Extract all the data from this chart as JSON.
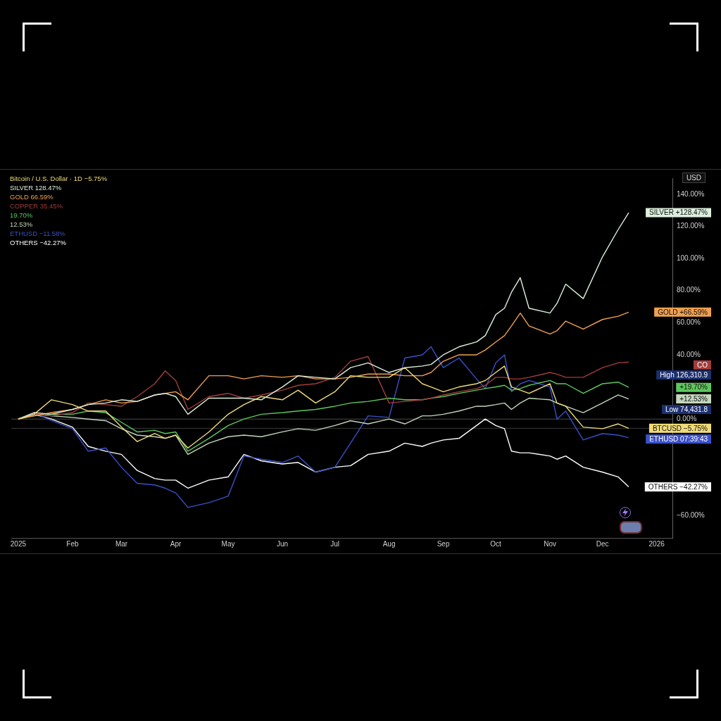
{
  "chart_data": {
    "type": "line",
    "legend": "top left",
    "x": [
      "2025-01-01",
      "2025-01-10",
      "2025-01-20",
      "2025-02-01",
      "2025-02-10",
      "2025-02-20",
      "2025-03-01",
      "2025-03-10",
      "2025-03-20",
      "2025-03-26",
      "2025-04-01",
      "2025-04-08",
      "2025-04-20",
      "2025-05-01",
      "2025-05-10",
      "2025-05-20",
      "2025-06-01",
      "2025-06-10",
      "2025-06-20",
      "2025-07-01",
      "2025-07-10",
      "2025-07-20",
      "2025-08-01",
      "2025-08-10",
      "2025-08-20",
      "2025-08-25",
      "2025-09-01",
      "2025-09-10",
      "2025-09-20",
      "2025-09-25",
      "2025-10-01",
      "2025-10-06",
      "2025-10-10",
      "2025-10-15",
      "2025-10-20",
      "2025-11-01",
      "2025-11-05",
      "2025-11-10",
      "2025-11-20",
      "2025-12-01",
      "2025-12-10",
      "2025-12-16"
    ],
    "xlim": [
      "2024-12-28",
      "2026-01-10"
    ],
    "xticks": [
      {
        "value": "2025-01-01",
        "label": "2025"
      },
      {
        "value": "2025-02-01",
        "label": "Feb"
      },
      {
        "value": "2025-03-01",
        "label": "Mar"
      },
      {
        "value": "2025-04-01",
        "label": "Apr"
      },
      {
        "value": "2025-05-01",
        "label": "May"
      },
      {
        "value": "2025-06-01",
        "label": "Jun"
      },
      {
        "value": "2025-07-01",
        "label": "Jul"
      },
      {
        "value": "2025-08-01",
        "label": "Aug"
      },
      {
        "value": "2025-09-01",
        "label": "Sep"
      },
      {
        "value": "2025-10-01",
        "label": "Oct"
      },
      {
        "value": "2025-11-01",
        "label": "Nov"
      },
      {
        "value": "2025-12-01",
        "label": "Dec"
      },
      {
        "value": "2026-01-01",
        "label": "2026"
      }
    ],
    "ylim": [
      -74,
      150
    ],
    "yticks": [
      {
        "value": 140,
        "label": "140.00%"
      },
      {
        "value": 120,
        "label": "120.00%"
      },
      {
        "value": 100,
        "label": "100.00%"
      },
      {
        "value": 80,
        "label": "80.00%"
      },
      {
        "value": 60,
        "label": "60.00%"
      },
      {
        "value": 40,
        "label": "40.00%"
      },
      {
        "value": 0,
        "label": "0.00%"
      },
      {
        "value": -60,
        "label": "−60.00%"
      }
    ],
    "ref_lines": [
      {
        "axis": "y",
        "value": 0,
        "color": "#4a4a4a"
      },
      {
        "axis": "y",
        "value": -5.75,
        "color": "#3a3a3a"
      }
    ],
    "series": [
      {
        "name": "Bitcoin / U.S. Dollar · 1D −5.75%",
        "color": "#f0dc78",
        "values": [
          0,
          3,
          12,
          9,
          5,
          5,
          -5,
          -14,
          -9,
          -12,
          -10,
          -18,
          -8,
          3,
          9,
          14,
          12,
          18,
          10,
          17,
          27,
          26,
          26,
          32,
          22,
          20,
          17,
          20,
          22,
          24,
          29,
          33,
          20,
          18,
          16,
          22,
          10,
          8,
          -5,
          -6,
          -3,
          -5.75
        ]
      },
      {
        "name": "SILVER 128.47%",
        "color": "#dcefdc",
        "values": [
          0,
          4,
          3,
          6,
          9,
          10,
          12,
          11,
          15,
          16,
          14,
          3,
          13,
          13,
          13,
          12,
          20,
          27,
          26,
          25,
          32,
          35,
          29,
          32,
          33,
          34,
          40,
          45,
          48,
          52,
          65,
          69,
          79,
          88,
          69,
          66,
          72,
          84,
          75,
          101,
          118,
          128.47
        ]
      },
      {
        "name": "GOLD 66.59%",
        "color": "#f0a050",
        "values": [
          0,
          2,
          4,
          6,
          9,
          12,
          10,
          11,
          15,
          16,
          17,
          12,
          27,
          27,
          25,
          27,
          26,
          27,
          25,
          25,
          26,
          28,
          28,
          27,
          27,
          29,
          36,
          40,
          40,
          43,
          48,
          52,
          58,
          66,
          58,
          53,
          55,
          61,
          56,
          62,
          64,
          66.59
        ]
      },
      {
        "name": "COPPER 35.45%",
        "color": "#a33c3c",
        "values": [
          0,
          3,
          2,
          4,
          10,
          9,
          8,
          14,
          22,
          30,
          24,
          6,
          14,
          16,
          13,
          15,
          18,
          21,
          22,
          26,
          36,
          39,
          10,
          11,
          12,
          13,
          15,
          17,
          19,
          21,
          26,
          26,
          25,
          25,
          26,
          29,
          28,
          26,
          26,
          32,
          35,
          35.45
        ]
      },
      {
        "name": "19.70%",
        "color": "#5cc85c",
        "values": [
          0,
          2,
          3,
          3,
          5,
          4,
          -2,
          -8,
          -7,
          -9,
          -8,
          -20,
          -12,
          -4,
          0,
          3,
          4,
          5,
          6,
          8,
          10,
          11,
          13,
          12,
          12,
          13,
          14,
          16,
          18,
          19,
          20,
          21,
          18,
          19,
          21,
          24,
          22,
          22,
          16,
          22,
          23,
          19.7
        ]
      },
      {
        "name": "12.53%",
        "color": "#c4d6bc",
        "values": [
          0,
          3,
          2,
          1,
          0,
          -1,
          -6,
          -10,
          -11,
          -12,
          -10,
          -22,
          -15,
          -11,
          -10,
          -11,
          -8,
          -6,
          -7,
          -4,
          -1,
          -3,
          0,
          -3,
          2,
          2,
          3,
          5,
          8,
          8,
          9,
          10,
          6,
          10,
          13,
          12,
          10,
          8,
          4,
          10,
          15,
          12.53
        ]
      },
      {
        "name": "ETHUSD −11.58%",
        "color": "#3a50c8",
        "values": [
          0,
          4,
          -1,
          -6,
          -20,
          -18,
          -30,
          -40,
          -41,
          -43,
          -46,
          -55,
          -52,
          -48,
          -23,
          -25,
          -27,
          -23,
          -33,
          -30,
          -15,
          2,
          1,
          38,
          40,
          45,
          32,
          38,
          25,
          19,
          35,
          40,
          17,
          22,
          24,
          20,
          0,
          5,
          -13,
          -9,
          -10,
          -11.58
        ]
      },
      {
        "name": "OTHERS −42.27%",
        "color": "#ffffff",
        "values": [
          0,
          3,
          0,
          -5,
          -17,
          -20,
          -22,
          -32,
          -37,
          -38,
          -38,
          -43,
          -38,
          -36,
          -22,
          -26,
          -28,
          -27,
          -33,
          -30,
          -29,
          -22,
          -20,
          -15,
          -17,
          -15,
          -13,
          -12,
          -4,
          0,
          -4,
          -6,
          -20,
          -21,
          -21,
          -23,
          -25,
          -23,
          -30,
          -33,
          -36,
          -42.27
        ]
      }
    ],
    "annotations": [
      "USD",
      "BTCUSD −5.75%",
      "SILVER +128.47%",
      "GOLD +66.59%",
      "CO",
      "+19.70%",
      "+12.53%",
      "ETHUSD 07:39:43",
      "OTHERS −42.27%",
      "High 126,310.9",
      "Low 74,431.8"
    ]
  }
}
